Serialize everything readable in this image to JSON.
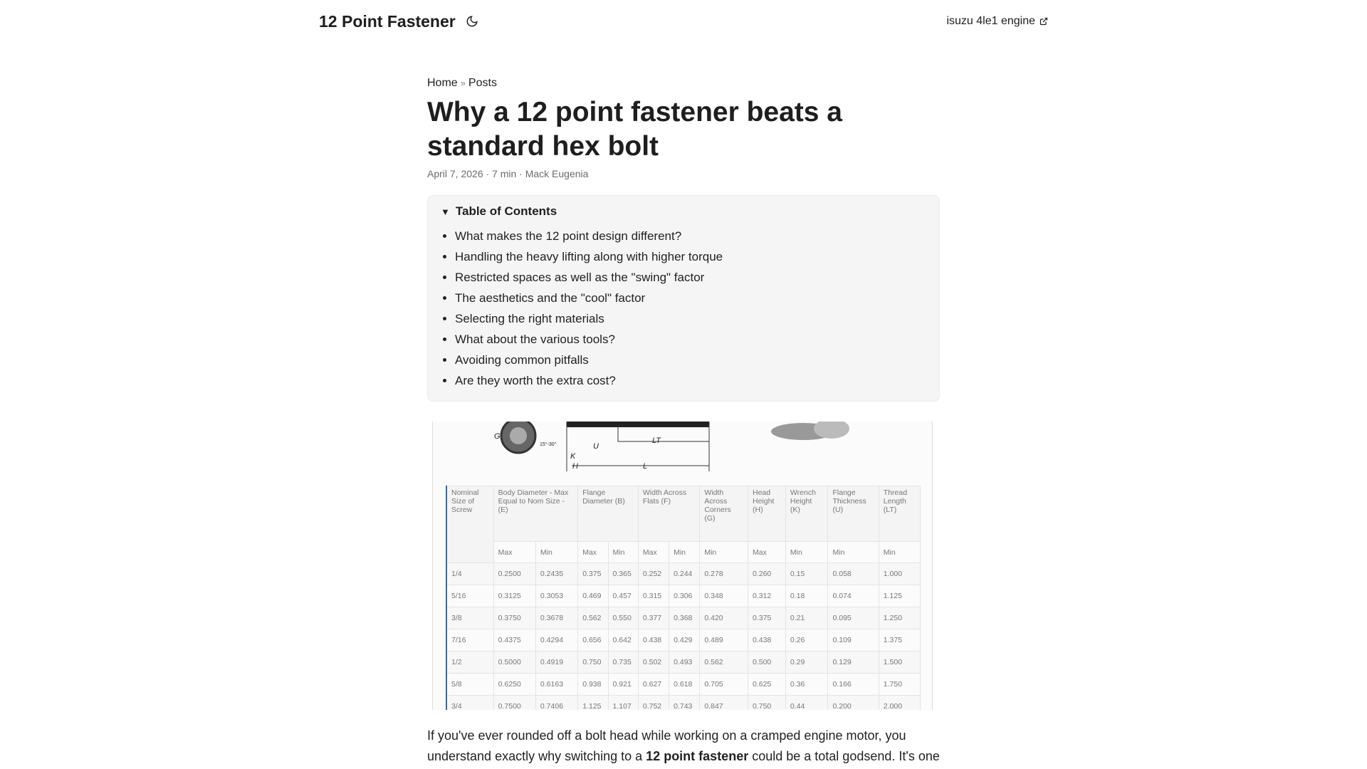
{
  "header": {
    "site_title": "12 Point Fastener",
    "theme_icon": "moon-icon",
    "external_link": "isuzu 4le1 engine",
    "external_icon": "external-link-icon"
  },
  "breadcrumb": {
    "home": "Home",
    "separator": "»",
    "posts": "Posts"
  },
  "article": {
    "title": "Why a 12 point fastener beats a standard hex bolt",
    "meta": "April 7, 2026 · 7 min · Mack Eugenia",
    "toc": {
      "title": "Table of Contents",
      "items": [
        "What makes the 12 point design different?",
        "Handling the heavy lifting along with higher torque",
        "Restricted spaces as well as the \"swing\" factor",
        "The aesthetics and the \"cool\" factor",
        "Selecting the right materials",
        "What about the various tools?",
        "Avoiding common pitfalls",
        "Are they worth the extra cost?"
      ]
    },
    "figure": {
      "diagram_labels": [
        "G",
        "15°-30°",
        "U",
        "K",
        "H",
        "LT",
        "L"
      ],
      "headers": [
        "Nominal Size of Screw",
        "Body Diameter - Max Equal to Nom Size - (E)",
        "Flange Diameter (B)",
        "Width Across Flats (F)",
        "Width Across Corners (G)",
        "Head Height (H)",
        "Wrench Height (K)",
        "Flange Thickness (U)",
        "Thread Length (LT)"
      ],
      "subheaders": [
        "Max",
        "Min",
        "Max",
        "Min",
        "Max",
        "Min",
        "Min",
        "Max",
        "Min",
        "Min",
        "Min"
      ],
      "rows": [
        [
          "1/4",
          "0.2500",
          "0.2435",
          "0.375",
          "0.365",
          "0.252",
          "0.244",
          "0.278",
          "0.260",
          "0.15",
          "0.058",
          "1.000"
        ],
        [
          "5/16",
          "0.3125",
          "0.3053",
          "0.469",
          "0.457",
          "0.315",
          "0.306",
          "0.348",
          "0.312",
          "0.18",
          "0.074",
          "1.125"
        ],
        [
          "3/8",
          "0.3750",
          "0.3678",
          "0.562",
          "0.550",
          "0.377",
          "0.368",
          "0.420",
          "0.375",
          "0.21",
          "0.095",
          "1.250"
        ],
        [
          "7/16",
          "0.4375",
          "0.4294",
          "0.656",
          "0.642",
          "0.438",
          "0.429",
          "0.489",
          "0.438",
          "0.26",
          "0.109",
          "1.375"
        ],
        [
          "1/2",
          "0.5000",
          "0.4919",
          "0.750",
          "0.735",
          "0.502",
          "0.493",
          "0.562",
          "0.500",
          "0.29",
          "0.129",
          "1.500"
        ],
        [
          "5/8",
          "0.6250",
          "0.6163",
          "0.938",
          "0.921",
          "0.627",
          "0.618",
          "0.705",
          "0.625",
          "0.36",
          "0.166",
          "1.750"
        ],
        [
          "3/4",
          "0.7500",
          "0.7406",
          "1.125",
          "1.107",
          "0.752",
          "0.743",
          "0.847",
          "0.750",
          "0.44",
          "0.200",
          "2.000"
        ]
      ]
    },
    "intro": {
      "part1": "If you've ever rounded off a bolt head while working on a cramped engine motor, you understand exactly why switching to a ",
      "bold": "12 point fastener",
      "part2": " could be a total godsend. It's one"
    }
  }
}
